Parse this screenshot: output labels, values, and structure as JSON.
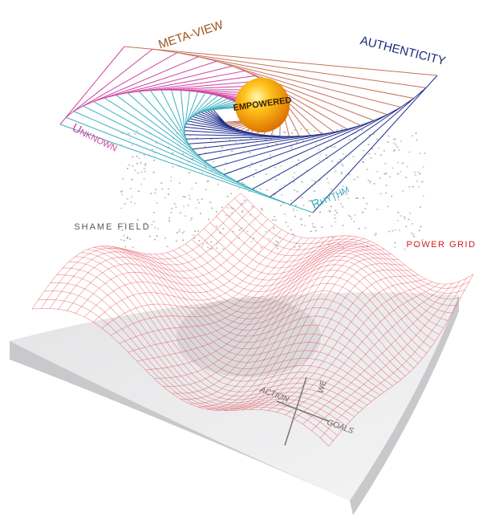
{
  "labels": {
    "meta_view": "META-VIEW",
    "authenticity": "AUTHENTICITY",
    "unknown": "Unknown",
    "rhythm": "Rhythm",
    "empowered": "EMPOWERED",
    "shame_field": "SHAME FIELD",
    "power_grid": "POWER GRID"
  },
  "axes": {
    "we": "WE",
    "action": "ACTION",
    "goals": "GOALS"
  }
}
